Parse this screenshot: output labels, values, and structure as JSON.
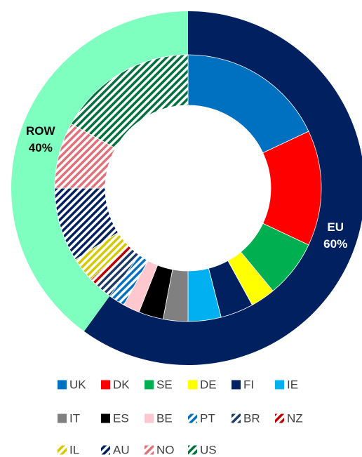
{
  "chart_data": [
    {
      "type": "donut",
      "ring": "outer",
      "categories": [
        "EU",
        "ROW"
      ],
      "values": [
        60,
        40
      ],
      "value_labels": [
        "60%",
        "40%"
      ],
      "colors": [
        "#002060",
        "#7fffbf"
      ],
      "label_colors": [
        "#ffffff",
        "#000000"
      ]
    },
    {
      "type": "donut",
      "ring": "inner",
      "categories": [
        "UK",
        "DK",
        "SE",
        "DE",
        "FI",
        "IE",
        "IT",
        "ES",
        "BE",
        "PT",
        "BR",
        "NZ",
        "IL",
        "AU",
        "NO",
        "US"
      ],
      "values": [
        18,
        14,
        7,
        3,
        4,
        4,
        3,
        3,
        2,
        2,
        2,
        1,
        3,
        9,
        8,
        17
      ],
      "colors": [
        "#0070c0",
        "#ff0000",
        "#00b050",
        "#ffff00",
        "#002060",
        "#00b0f0",
        "#808080",
        "#000000",
        "#ffc7ce",
        "#0070c0",
        "#1f3864",
        "#c00000",
        "#d4c800",
        "#002060",
        "#e0707a",
        "#00703c"
      ],
      "hatched": [
        false,
        false,
        false,
        false,
        false,
        false,
        false,
        false,
        false,
        true,
        true,
        true,
        true,
        true,
        true,
        true
      ]
    }
  ]
}
